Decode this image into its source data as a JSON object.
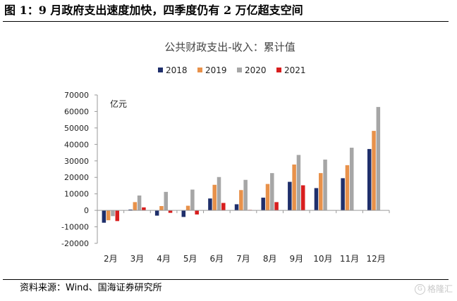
{
  "figure": {
    "title": "图 1：9 月政府支出速度加快，四季度仍有 2 万亿超支空间",
    "source": "资料来源：Wind、国海证券研究所",
    "watermark": "格隆汇",
    "watermark_icon": "gelonghui-logo-icon"
  },
  "chart_data": {
    "type": "bar",
    "title": "公共财政支出-收入：累计值",
    "unit_label": "亿元",
    "xlabel": "",
    "ylabel": "",
    "categories": [
      "2月",
      "3月",
      "4月",
      "5月",
      "6月",
      "7月",
      "8月",
      "9月",
      "10月",
      "11月",
      "12月"
    ],
    "yticks": [
      -20000,
      -10000,
      0,
      10000,
      20000,
      30000,
      40000,
      50000,
      60000,
      70000
    ],
    "ylim": [
      -20000,
      70000
    ],
    "grid": false,
    "legend_position": "top-center",
    "series": [
      {
        "name": "2018",
        "color": "#1f2f6b",
        "values": [
          -7500,
          500,
          -3200,
          -4000,
          7200,
          3700,
          7700,
          17300,
          13500,
          19500,
          37200
        ]
      },
      {
        "name": "2019",
        "color": "#e8914a",
        "values": [
          -6000,
          5000,
          2600,
          2800,
          15500,
          12300,
          16000,
          27800,
          22600,
          27400,
          48200
        ]
      },
      {
        "name": "2020",
        "color": "#a6a6a6",
        "values": [
          -3500,
          9000,
          11200,
          12600,
          20200,
          18500,
          22600,
          33600,
          30800,
          38000,
          62700
        ]
      },
      {
        "name": "2021",
        "color": "#d81e1e",
        "values": [
          -6500,
          1800,
          -1500,
          -2500,
          4500,
          300,
          5000,
          15200,
          null,
          null,
          null
        ]
      }
    ]
  }
}
